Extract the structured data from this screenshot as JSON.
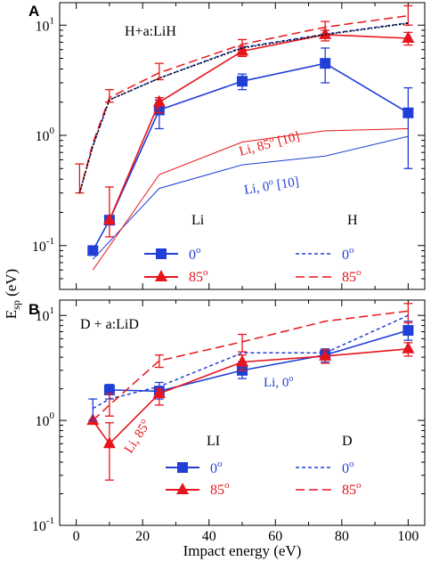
{
  "colors": {
    "blue": "#1f3fd6",
    "red": "#e8141b",
    "black": "#000000",
    "frame": "#000000"
  },
  "shared": {
    "ylabel_main": "E",
    "ylabel_sub": "sp",
    "ylabel_unit": " (eV)",
    "xlabel": "Impact energy (eV)",
    "xlim": [
      -5,
      105
    ],
    "xticks": [
      0,
      20,
      40,
      60,
      80,
      100
    ]
  },
  "chart_data": [
    {
      "type": "line",
      "panel_letter": "A",
      "title": "H+a:LiH",
      "yscale": "log",
      "ylim": [
        0.04,
        16
      ],
      "yticks": [
        {
          "v": 0.1,
          "base": "10",
          "exp": "-1"
        },
        {
          "v": 1,
          "base": "10",
          "exp": "0"
        },
        {
          "v": 10,
          "base": "10",
          "exp": "1"
        }
      ],
      "grid": false,
      "legend": {
        "placement": "bottom-center",
        "groups": [
          {
            "heading": "Li",
            "entries": [
              "0°",
              "85°"
            ]
          },
          {
            "heading": "H",
            "entries": [
              "0°",
              "85°"
            ]
          }
        ]
      },
      "annotations": [
        {
          "key": "li85ref",
          "text": "Li, 85° [10]",
          "color": "red"
        },
        {
          "key": "li0ref",
          "text": "Li, 0° [10]",
          "color": "blue"
        }
      ],
      "series": [
        {
          "key": "li0",
          "color": "blue",
          "dash": "solid",
          "marker": "square",
          "x": [
            5,
            10,
            25,
            50,
            75,
            100
          ],
          "y": [
            0.09,
            0.17,
            1.7,
            3.1,
            4.5,
            1.6
          ],
          "err": [
            [
              0,
              0
            ],
            [
              0,
              0
            ],
            [
              1.15,
              2.1
            ],
            [
              2.6,
              3.6
            ],
            [
              3.0,
              6.2
            ],
            [
              0.5,
              2.7
            ]
          ]
        },
        {
          "key": "li85",
          "color": "red",
          "dash": "solid",
          "marker": "triangle",
          "x": [
            10,
            25,
            50,
            75,
            100
          ],
          "y": [
            0.17,
            2.0,
            5.8,
            8.2,
            7.6
          ],
          "err": [
            [
              0.12,
              0.34
            ],
            [
              1.6,
              2.2
            ],
            [
              5.2,
              6.4
            ],
            [
              7.2,
              9.0
            ],
            [
              6.6,
              8.6
            ]
          ]
        },
        {
          "key": "li0ref",
          "color": "blue",
          "dash": "thin",
          "x": [
            5,
            25,
            50,
            75,
            100
          ],
          "y": [
            0.075,
            0.33,
            0.54,
            0.65,
            0.98
          ]
        },
        {
          "key": "li85ref",
          "color": "red",
          "dash": "thin",
          "x": [
            5,
            25,
            50,
            75,
            100
          ],
          "y": [
            0.06,
            0.44,
            0.87,
            1.1,
            1.15
          ]
        },
        {
          "key": "h0",
          "color": "blue",
          "dash": "short",
          "x": [
            1,
            5,
            10,
            25,
            50,
            75,
            100
          ],
          "y": [
            0.3,
            0.8,
            2.1,
            3.3,
            6.3,
            8.3,
            10.5
          ]
        },
        {
          "key": "h85",
          "color": "red",
          "dash": "long",
          "x": [
            1,
            5,
            10,
            25,
            50,
            75,
            100
          ],
          "y": [
            0.3,
            0.85,
            2.2,
            3.7,
            6.7,
            9.6,
            12.2
          ],
          "err": [
            [
              0.3,
              0.55
            ],
            [
              0,
              0
            ],
            [
              2.0,
              2.6
            ],
            [
              3.2,
              4.5
            ],
            [
              6.0,
              7.4
            ],
            [
              8.3,
              10.8
            ],
            [
              10.0,
              15.0
            ]
          ]
        },
        {
          "key": "hblack",
          "color": "black",
          "dash": "dot",
          "x": [
            1,
            5,
            10,
            25,
            50,
            75,
            100
          ],
          "y": [
            0.3,
            0.8,
            2.1,
            3.3,
            6.2,
            8.2,
            10.4
          ]
        }
      ]
    },
    {
      "type": "line",
      "panel_letter": "B",
      "title": "D + a:LiD",
      "yscale": "log",
      "ylim": [
        0.1,
        14
      ],
      "yticks": [
        {
          "v": 0.1,
          "base": "10",
          "exp": "-1"
        },
        {
          "v": 1,
          "base": "10",
          "exp": "0"
        },
        {
          "v": 10,
          "base": "10",
          "exp": "1"
        }
      ],
      "grid": false,
      "legend": {
        "placement": "bottom-center",
        "groups": [
          {
            "heading": "LI",
            "entries": [
              "0°",
              "85°"
            ]
          },
          {
            "heading": "D",
            "entries": [
              "0°",
              "85°"
            ]
          }
        ]
      },
      "annotations": [
        {
          "key": "li0",
          "text": "Li, 0°",
          "color": "blue"
        },
        {
          "key": "li85",
          "text": "Li, 85°",
          "color": "red"
        }
      ],
      "series": [
        {
          "key": "li0",
          "color": "blue",
          "dash": "solid",
          "marker": "square",
          "x": [
            10,
            25,
            50,
            75,
            100
          ],
          "y": [
            1.95,
            1.9,
            3.0,
            4.2,
            7.2
          ],
          "err": [
            [
              1.6,
              2.2
            ],
            [
              1.6,
              2.3
            ],
            [
              2.5,
              3.6
            ],
            [
              3.6,
              4.8
            ],
            [
              5.8,
              8.8
            ]
          ]
        },
        {
          "key": "li85",
          "color": "red",
          "dash": "solid",
          "marker": "triangle",
          "x": [
            5,
            10,
            25,
            50,
            75,
            100
          ],
          "y": [
            1.0,
            0.6,
            1.8,
            3.6,
            4.1,
            4.8
          ],
          "err": [
            [
              0,
              0
            ],
            [
              0.27,
              0.95
            ],
            [
              1.4,
              2.0
            ],
            [
              3.0,
              4.2
            ],
            [
              3.5,
              4.7
            ],
            [
              4.1,
              5.5
            ]
          ]
        },
        {
          "key": "d0",
          "color": "blue",
          "dash": "short",
          "x": [
            5,
            10,
            25,
            50,
            75,
            100
          ],
          "y": [
            1.3,
            1.6,
            2.1,
            4.4,
            4.4,
            10.0
          ],
          "err": [
            [
              1.0,
              1.6
            ],
            [
              0,
              0
            ],
            [
              0,
              0
            ],
            [
              0,
              0
            ],
            [
              0,
              0
            ],
            [
              0,
              0
            ]
          ]
        },
        {
          "key": "d85",
          "color": "red",
          "dash": "long",
          "x": [
            5,
            10,
            25,
            50,
            75,
            100
          ],
          "y": [
            1.0,
            1.4,
            3.7,
            5.6,
            8.8,
            11.0
          ],
          "err": [
            [
              0,
              0
            ],
            [
              1.1,
              1.8
            ],
            [
              3.2,
              4.2
            ],
            [
              4.5,
              6.6
            ],
            [
              0,
              0
            ],
            [
              8.5,
              13.0
            ]
          ]
        }
      ]
    }
  ]
}
